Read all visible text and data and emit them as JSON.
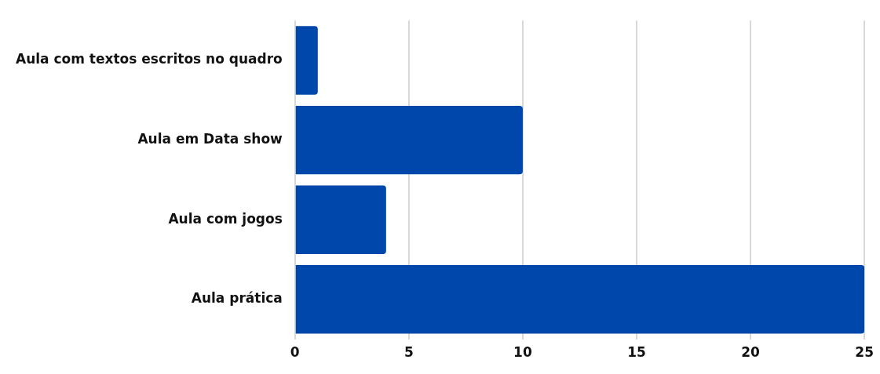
{
  "chart_data": {
    "type": "bar",
    "orientation": "horizontal",
    "categories": [
      "Aula com textos escritos no quadro",
      "Aula em Data show",
      "Aula com jogos",
      "Aula prática"
    ],
    "values": [
      1,
      10,
      4,
      25
    ],
    "color": "#0047ab",
    "xlim": [
      0,
      25
    ],
    "xticks": [
      0,
      5,
      10,
      15,
      20,
      25
    ],
    "grid": "x",
    "legend": false
  }
}
